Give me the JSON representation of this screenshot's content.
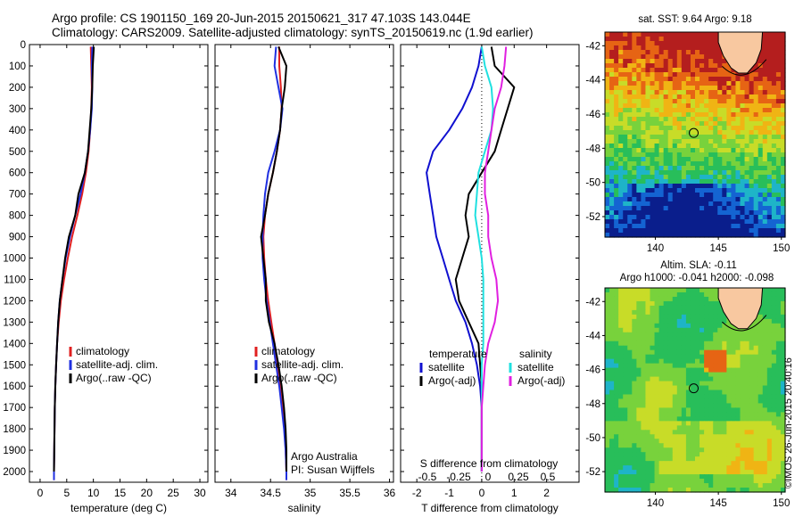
{
  "titles": {
    "line1": "Argo profile: CS 1901150_169 20-Jun-2015 20150621_317 47.103S 143.044E",
    "line2": "Climatology: CARS2009. Satellite-adjusted climatology: synTS_20150619.nc (1.9d earlier)"
  },
  "side_text": "©IMOS 26-Jun-2015 20:40:16",
  "colors": {
    "climatology": "#e02020",
    "satellite": "#2030e0",
    "argo": "#000000",
    "sat_temp_diff": "#1010d0",
    "sat_sal_diff": "#20e0e0",
    "argo_sal_diff": "#e020e0",
    "land": "#f8c8a0"
  },
  "chart_data": [
    {
      "type": "line",
      "panel": "temperature",
      "xlabel": "temperature (deg C)",
      "xticks": [
        0,
        5,
        10,
        15,
        20,
        25,
        30
      ],
      "xlim": [
        -2,
        31.5
      ],
      "ylim": [
        0,
        2050
      ],
      "yreversed": true,
      "yticks": [
        0,
        100,
        200,
        300,
        400,
        500,
        600,
        700,
        800,
        900,
        1000,
        1100,
        1200,
        1300,
        1400,
        1500,
        1600,
        1700,
        1800,
        1900,
        2000
      ],
      "legend": [
        "climatology",
        "satellite-adj. clim.",
        "Argo(..raw -QC)"
      ],
      "series": [
        {
          "name": "climatology",
          "color": "#e02020",
          "x": [
            9.5,
            9.6,
            9.7,
            9.6,
            9.4,
            9.1,
            8.6,
            7.9,
            7.0,
            6.0,
            5.2,
            4.5,
            3.9,
            3.5,
            3.2,
            3.0,
            2.85,
            2.75,
            2.7,
            2.65,
            2.6,
            2.6
          ],
          "y": [
            10,
            100,
            200,
            300,
            400,
            500,
            600,
            700,
            800,
            900,
            1000,
            1100,
            1200,
            1300,
            1400,
            1500,
            1600,
            1700,
            1800,
            1900,
            2000,
            2040
          ]
        },
        {
          "name": "satellite-adj. clim.",
          "color": "#2030e0",
          "x": [
            9.8,
            9.7,
            9.8,
            9.7,
            9.4,
            9.0,
            8.4,
            7.6,
            6.6,
            5.6,
            4.8,
            4.2,
            3.7,
            3.4,
            3.2,
            3.0,
            2.85,
            2.75,
            2.7,
            2.65,
            2.6,
            2.6
          ],
          "y": [
            10,
            100,
            200,
            300,
            400,
            500,
            600,
            700,
            800,
            900,
            1000,
            1100,
            1200,
            1300,
            1400,
            1500,
            1600,
            1700,
            1800,
            1900,
            2000,
            2040
          ]
        },
        {
          "name": "Argo(..raw -QC)",
          "color": "#000000",
          "x": [
            10.1,
            9.9,
            9.8,
            9.6,
            9.3,
            9.0,
            8.4,
            7.2,
            6.6,
            5.4,
            4.7,
            4.2,
            3.7,
            3.4,
            3.2,
            3.0,
            2.85,
            2.75,
            2.7,
            2.65,
            2.6
          ],
          "y": [
            10,
            100,
            200,
            300,
            400,
            500,
            600,
            700,
            800,
            900,
            1000,
            1100,
            1200,
            1300,
            1400,
            1500,
            1600,
            1700,
            1800,
            1900,
            2000
          ]
        }
      ]
    },
    {
      "type": "line",
      "panel": "salinity",
      "xlabel": "salinity",
      "xticks": [
        34,
        34.5,
        35,
        35.5,
        36
      ],
      "xticklabels": [
        "34",
        "34.5",
        "35",
        "35.5",
        "36"
      ],
      "xlim": [
        33.8,
        36.05
      ],
      "ylim": [
        0,
        2050
      ],
      "yreversed": true,
      "legend": [
        "climatology",
        "satellite-adj. clim.",
        "Argo(..raw -QC)"
      ],
      "annotation": [
        "Argo Australia",
        "PI: Susan Wijffels"
      ],
      "series": [
        {
          "name": "climatology",
          "color": "#e02020",
          "x": [
            34.61,
            34.61,
            34.63,
            34.64,
            34.62,
            34.58,
            34.53,
            34.47,
            34.43,
            34.41,
            34.42,
            34.44,
            34.47,
            34.51,
            34.55,
            34.58,
            34.62,
            34.65,
            34.68,
            34.69,
            34.7,
            34.7
          ],
          "y": [
            10,
            100,
            200,
            300,
            400,
            500,
            600,
            700,
            800,
            900,
            1000,
            1100,
            1200,
            1300,
            1400,
            1500,
            1600,
            1700,
            1800,
            1900,
            2000,
            2040
          ]
        },
        {
          "name": "satellite-adj. clim.",
          "color": "#2030e0",
          "x": [
            34.57,
            34.55,
            34.6,
            34.65,
            34.62,
            34.55,
            34.47,
            34.43,
            34.41,
            34.4,
            34.4,
            34.42,
            34.45,
            34.49,
            34.53,
            34.57,
            34.61,
            34.64,
            34.67,
            34.69,
            34.7,
            34.7
          ],
          "y": [
            10,
            100,
            200,
            300,
            400,
            500,
            600,
            700,
            800,
            900,
            1000,
            1100,
            1200,
            1300,
            1400,
            1500,
            1600,
            1700,
            1800,
            1900,
            2000,
            2040
          ]
        },
        {
          "name": "Argo(..raw -QC)",
          "color": "#000000",
          "x": [
            34.6,
            34.7,
            34.68,
            34.64,
            34.62,
            34.58,
            34.53,
            34.47,
            34.43,
            34.38,
            34.41,
            34.44,
            34.44,
            34.48,
            34.55,
            34.6,
            34.64,
            34.67,
            34.69,
            34.7,
            34.7
          ],
          "y": [
            10,
            100,
            200,
            300,
            400,
            500,
            600,
            700,
            800,
            900,
            1000,
            1100,
            1200,
            1300,
            1400,
            1500,
            1600,
            1700,
            1800,
            1900,
            2000
          ]
        }
      ]
    },
    {
      "type": "line",
      "panel": "differences",
      "xlabel": "T difference from climatology",
      "xticks": [
        -2,
        -1,
        0,
        1,
        2
      ],
      "xlim": [
        -2.5,
        3
      ],
      "top_axis_label": "S difference from climatology",
      "top_xticklabels": [
        "-0.5",
        "-0.25",
        "0",
        "0.25",
        "0.5"
      ],
      "ylim": [
        0,
        2050
      ],
      "yreversed": true,
      "legend": {
        "temperature_title": "temperature",
        "salinity_title": "salinity",
        "items": [
          "satellite",
          "Argo(-adj)",
          "satellite",
          "Argo(-adj)"
        ]
      },
      "series": [
        {
          "name": "satellite",
          "color": "#1010d0",
          "x": [
            0.0,
            -0.1,
            -0.3,
            -0.6,
            -1.0,
            -1.5,
            -1.7,
            -1.6,
            -1.5,
            -1.4,
            -1.2,
            -1.0,
            -0.8,
            -0.5,
            -0.3,
            -0.15,
            -0.05,
            0.0,
            0.0,
            0.0,
            0.0
          ],
          "y": [
            10,
            100,
            200,
            300,
            400,
            500,
            600,
            700,
            800,
            900,
            1000,
            1100,
            1200,
            1300,
            1400,
            1500,
            1600,
            1700,
            1800,
            1900,
            2000
          ]
        },
        {
          "name": "Argo(-adj)",
          "color": "#000000",
          "x": [
            0.3,
            0.4,
            1.0,
            0.8,
            0.6,
            0.4,
            0.0,
            -0.4,
            -0.5,
            -0.4,
            -0.6,
            -0.8,
            -0.7,
            -0.4,
            -0.1,
            -0.05,
            0.0,
            0.0,
            0.0,
            0.0,
            0.0
          ],
          "y": [
            10,
            100,
            200,
            300,
            400,
            500,
            600,
            700,
            800,
            900,
            1000,
            1100,
            1200,
            1300,
            1400,
            1500,
            1600,
            1700,
            1800,
            1900,
            2000
          ]
        },
        {
          "name": "satellite",
          "color": "#20e0e0",
          "x": [
            0.0,
            0.1,
            0.3,
            0.35,
            0.3,
            0.1,
            -0.1,
            -0.15,
            -0.2,
            -0.1,
            0.0,
            0.05,
            0.05,
            0.05,
            0.05,
            0.0,
            0.0,
            0.0,
            0.0,
            0.0,
            0.0
          ],
          "y": [
            10,
            100,
            200,
            300,
            400,
            500,
            600,
            700,
            800,
            900,
            1000,
            1100,
            1200,
            1300,
            1400,
            1500,
            1600,
            1700,
            1800,
            1900,
            2000
          ]
        },
        {
          "name": "Argo(-adj)",
          "color": "#e020e0",
          "x": [
            0.75,
            0.7,
            0.6,
            0.4,
            0.3,
            0.2,
            0.1,
            0.1,
            0.2,
            0.2,
            0.3,
            0.45,
            0.5,
            0.4,
            0.2,
            0.1,
            0.05,
            0.0,
            0.0,
            0.0,
            0.0
          ],
          "y": [
            10,
            100,
            200,
            300,
            400,
            500,
            600,
            700,
            800,
            900,
            1000,
            1100,
            1200,
            1300,
            1400,
            1500,
            1600,
            1700,
            1800,
            1900,
            2000
          ]
        }
      ]
    },
    {
      "type": "heatmap",
      "panel": "sst_map",
      "title": "sat. SST: 9.64  Argo: 9.18",
      "xlim": [
        136,
        150.3
      ],
      "ylim": [
        -53.2,
        -41.2
      ],
      "xticks": [
        140,
        145,
        150
      ],
      "yticks": [
        -42,
        -44,
        -46,
        -48,
        -50,
        -52
      ],
      "profile_location": {
        "lon": 143.044,
        "lat": -47.103
      },
      "colors_low_to_high": [
        "#0a1e8c",
        "#1464d2",
        "#1eb4c8",
        "#28be5a",
        "#78d23c",
        "#c8dc28",
        "#f0b414",
        "#e66414",
        "#b41e1e"
      ]
    },
    {
      "type": "heatmap",
      "panel": "sla_map",
      "title": "Altim. SLA: -0.11",
      "subtitle": "Argo h1000: -0.041 h2000: -0.098",
      "xlim": [
        136,
        150.3
      ],
      "ylim": [
        -53.2,
        -41.2
      ],
      "xticks": [
        140,
        145,
        150
      ],
      "yticks": [
        -42,
        -44,
        -46,
        -48,
        -50,
        -52
      ],
      "profile_location": {
        "lon": 143.044,
        "lat": -47.103
      },
      "colors_low_to_high": [
        "#1eb4c8",
        "#28be5a",
        "#78d23c",
        "#c8dc28",
        "#f0b414",
        "#e66414"
      ]
    }
  ]
}
